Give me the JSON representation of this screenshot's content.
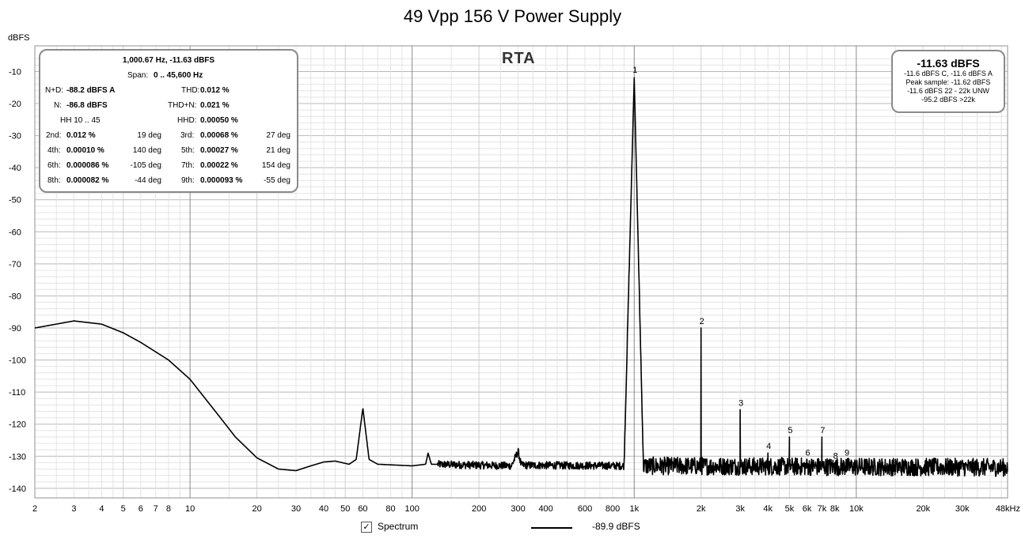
{
  "chart_data": {
    "type": "line",
    "title": "49 Vpp 156 V Power Supply",
    "ylabel": "dBFS",
    "xlabel": "",
    "x_scale": "log",
    "xlim": [
      2,
      48000
    ],
    "ylim": [
      -143,
      -2
    ],
    "grid": true,
    "x_ticks": [
      {
        "v": 2,
        "label": "2"
      },
      {
        "v": 3,
        "label": "3"
      },
      {
        "v": 4,
        "label": "4"
      },
      {
        "v": 5,
        "label": "5"
      },
      {
        "v": 6,
        "label": "6"
      },
      {
        "v": 7,
        "label": "7"
      },
      {
        "v": 8,
        "label": "8"
      },
      {
        "v": 10,
        "label": "10"
      },
      {
        "v": 20,
        "label": "20"
      },
      {
        "v": 30,
        "label": "30"
      },
      {
        "v": 40,
        "label": "40"
      },
      {
        "v": 50,
        "label": "50"
      },
      {
        "v": 60,
        "label": "60"
      },
      {
        "v": 80,
        "label": "80"
      },
      {
        "v": 100,
        "label": "100"
      },
      {
        "v": 200,
        "label": "200"
      },
      {
        "v": 300,
        "label": "300"
      },
      {
        "v": 400,
        "label": "400"
      },
      {
        "v": 600,
        "label": "600"
      },
      {
        "v": 800,
        "label": "800"
      },
      {
        "v": 1000,
        "label": "1k"
      },
      {
        "v": 2000,
        "label": "2k"
      },
      {
        "v": 3000,
        "label": "3k"
      },
      {
        "v": 4000,
        "label": "4k"
      },
      {
        "v": 5000,
        "label": "5k"
      },
      {
        "v": 6000,
        "label": "6k"
      },
      {
        "v": 7000,
        "label": "7k"
      },
      {
        "v": 8000,
        "label": "8k"
      },
      {
        "v": 10000,
        "label": "10k"
      },
      {
        "v": 20000,
        "label": "20k"
      },
      {
        "v": 30000,
        "label": "30k"
      },
      {
        "v": 48000,
        "label": "48kHz"
      }
    ],
    "y_ticks": [
      -10,
      -20,
      -30,
      -40,
      -50,
      -60,
      -70,
      -80,
      -90,
      -100,
      -110,
      -120,
      -130,
      -140
    ],
    "series": [
      {
        "name": "Spectrum",
        "color": "#000000",
        "baseline": [
          [
            2,
            -90
          ],
          [
            3,
            -87.8
          ],
          [
            4,
            -88.8
          ],
          [
            5,
            -91.5
          ],
          [
            6,
            -94.5
          ],
          [
            8,
            -100
          ],
          [
            10,
            -106
          ],
          [
            13,
            -116
          ],
          [
            16,
            -124
          ],
          [
            20,
            -130.5
          ],
          [
            25,
            -134
          ],
          [
            30,
            -134.5
          ],
          [
            35,
            -133
          ],
          [
            40,
            -131.8
          ],
          [
            45,
            -131.5
          ],
          [
            52,
            -132.5
          ],
          [
            56,
            -131
          ],
          [
            60,
            -115
          ],
          [
            64,
            -131
          ],
          [
            70,
            -132.5
          ],
          [
            100,
            -133
          ],
          [
            115,
            -132.5
          ],
          [
            118,
            -129
          ],
          [
            122,
            -132.5
          ],
          [
            280,
            -133
          ],
          [
            300,
            -128.5
          ],
          [
            310,
            -132.8
          ],
          [
            900,
            -133
          ],
          [
            1000,
            -11.7
          ],
          [
            1100,
            -133
          ],
          [
            48000,
            -133.5
          ]
        ],
        "noise_from_hz": 130,
        "harmonics": [
          {
            "hz": 2000,
            "dbfs": -90,
            "label": "2"
          },
          {
            "hz": 3000,
            "dbfs": -115.5,
            "label": "3"
          },
          {
            "hz": 4000,
            "dbfs": -129,
            "label": "4"
          },
          {
            "hz": 5000,
            "dbfs": -124,
            "label": "5"
          },
          {
            "hz": 6000,
            "dbfs": -131,
            "label": "6"
          },
          {
            "hz": 7000,
            "dbfs": -124,
            "label": "7"
          },
          {
            "hz": 8000,
            "dbfs": -132,
            "label": "8"
          },
          {
            "hz": 9000,
            "dbfs": -131,
            "label": "9"
          }
        ],
        "fundamental": {
          "hz": 1000.67,
          "dbfs": -11.63,
          "label": "1"
        }
      }
    ]
  },
  "rta_label": "RTA",
  "info_panel": {
    "line1": "1,000.67 Hz, -11.63 dBFS",
    "line2_label": "Span:",
    "line2_value": "0 .. 45,600 Hz",
    "nd_label": "N+D:",
    "nd_value": "-88.2 dBFS A",
    "thd_label": "THD:",
    "thd_value": "0.012 %",
    "n_label": "N:",
    "n_value": "-86.8 dBFS",
    "thdn_label": "THD+N:",
    "thdn_value": "0.021 %",
    "hh_label": "HH 10 .. 45",
    "hhd_label": "HHD:",
    "hhd_value": "0.00050 %",
    "harmonics": [
      {
        "l": "2nd:",
        "v": "0.012 %",
        "deg": "19 deg",
        "l2": "3rd:",
        "v2": "0.00068 %",
        "deg2": "27 deg"
      },
      {
        "l": "4th:",
        "v": "0.00010 %",
        "deg": "140 deg",
        "l2": "5th:",
        "v2": "0.00027 %",
        "deg2": "21 deg"
      },
      {
        "l": "6th:",
        "v": "0.000086 %",
        "deg": "-105 deg",
        "l2": "7th:",
        "v2": "0.00022 %",
        "deg2": "154 deg"
      },
      {
        "l": "8th:",
        "v": "0.000082 %",
        "deg": "-44 deg",
        "l2": "9th:",
        "v2": "0.000093 %",
        "deg2": "-55 deg"
      }
    ]
  },
  "level_panel": {
    "main": "-11.63 dBFS",
    "l1": "-11.6 dBFS C, -11.6 dBFS A",
    "l2": "Peak sample: -11.62 dBFS",
    "l3": "-11.6 dBFS 22 - 22k UNW",
    "l4": "-95.2 dBFS >22k"
  },
  "legend": {
    "checkbox_mark": "✓",
    "label": "Spectrum",
    "value": "-89.9 dBFS"
  }
}
